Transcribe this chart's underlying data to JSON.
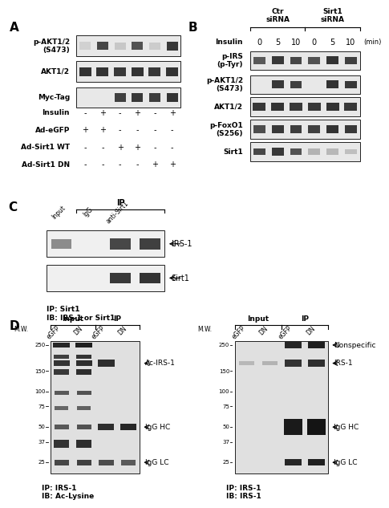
{
  "bg_color": "#ffffff",
  "panel_A": {
    "label": "A",
    "blot_labels": [
      "p-AKT1/2\n(S473)",
      "AKT1/2",
      "Myc-Tag"
    ],
    "cond_labels": [
      "Insulin",
      "Ad-eGFP",
      "Ad-Sirt1 WT",
      "Ad-Sirt1 DN"
    ],
    "cond_values": [
      [
        "-",
        "+",
        "-",
        "+",
        "-",
        "+"
      ],
      [
        "+",
        "+",
        "-",
        "-",
        "-",
        "-"
      ],
      [
        "-",
        "-",
        "+",
        "+",
        "-",
        "-"
      ],
      [
        "-",
        "-",
        "-",
        "-",
        "+",
        "+"
      ]
    ]
  },
  "panel_B": {
    "label": "B",
    "groups": [
      {
        "label": "Ctr\nsiRNA",
        "start": 0,
        "end": 2
      },
      {
        "label": "Sirt1\nsiRNA",
        "start": 3,
        "end": 5
      }
    ],
    "time_labels": [
      "0",
      "5",
      "10",
      "0",
      "5",
      "10"
    ],
    "time_unit": "(min)",
    "insulin_label": "Insulin",
    "blot_labels": [
      "p-IRS\n(p-Tyr)",
      "p-AKT1/2\n(S473)",
      "AKT1/2",
      "p-FoxO1\n(S256)",
      "Sirt1"
    ]
  },
  "panel_C": {
    "label": "C",
    "ip_label": "IP",
    "lane_labels": [
      "Input",
      "IgG",
      "anti-Sirt1"
    ],
    "blot_labels": [
      "IRS-1",
      "Sirt1"
    ],
    "footer": "IP: Sirt1\nIB: IRS-1 or Sirt1"
  },
  "panel_D_left": {
    "label": "D",
    "mw_marks": [
      250,
      150,
      100,
      75,
      50,
      37,
      25
    ],
    "group_labels": [
      "Input",
      "IP"
    ],
    "lane_labels": [
      "eGFP",
      "DN",
      "eGFP",
      "DN"
    ],
    "arrow_labels": [
      "Ac-IRS-1",
      "IgG HC",
      "IgG LC"
    ],
    "footer": "IP: IRS-1\nIB: Ac-Lysine"
  },
  "panel_D_right": {
    "mw_marks": [
      250,
      150,
      100,
      75,
      50,
      37,
      25
    ],
    "group_labels": [
      "Input",
      "IP"
    ],
    "lane_labels": [
      "eGFP",
      "DN",
      "eGFP",
      "DN"
    ],
    "arrow_labels": [
      "Nonspecific",
      "IRS-1",
      "IgG HC",
      "IgG LC"
    ],
    "footer": "IP: IRS-1\nIB: IRS-1"
  }
}
